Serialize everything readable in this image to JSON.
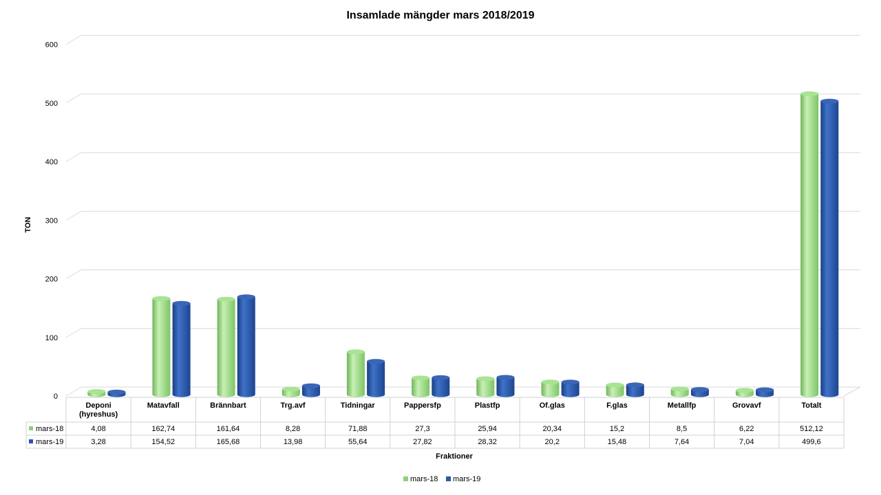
{
  "chart_data": {
    "type": "bar",
    "title": "Insamlade mängder mars 2018/2019",
    "xlabel": "Fraktioner",
    "ylabel": "TON",
    "ylim": [
      0,
      600
    ],
    "yticks": [
      "0",
      "100",
      "200",
      "300",
      "400",
      "500",
      "600"
    ],
    "categories": [
      [
        "Deponi",
        "(hyreshus)"
      ],
      [
        "Matavfall"
      ],
      [
        "Brännbart"
      ],
      [
        "Trg.avf"
      ],
      [
        "Tidningar"
      ],
      [
        "Pappersfp"
      ],
      [
        "Plastfp"
      ],
      [
        "Of.glas"
      ],
      [
        "F.glas"
      ],
      [
        "Metallfp"
      ],
      [
        "Grovavf"
      ],
      [
        "Totalt"
      ]
    ],
    "series": [
      {
        "name": "mars-18",
        "color": "#8fd17a",
        "values": [
          4.08,
          162.74,
          161.64,
          8.28,
          71.88,
          27.3,
          25.94,
          20.34,
          15.2,
          8.5,
          6.22,
          512.12
        ],
        "labels": [
          "4,08",
          "162,74",
          "161,64",
          "8,28",
          "71,88",
          "27,3",
          "25,94",
          "20,34",
          "15,2",
          "8,5",
          "6,22",
          "512,12"
        ]
      },
      {
        "name": "mars-19",
        "color": "#2a58a8",
        "values": [
          3.28,
          154.52,
          165.68,
          13.98,
          55.64,
          27.82,
          28.32,
          20.2,
          15.48,
          7.64,
          7.04,
          499.6
        ],
        "labels": [
          "3,28",
          "154,52",
          "165,68",
          "13,98",
          "55,64",
          "27,82",
          "28,32",
          "20,2",
          "15,48",
          "7,64",
          "7,04",
          "499,6"
        ]
      }
    ],
    "grid": true,
    "legend_position": "bottom",
    "data_table": true
  }
}
